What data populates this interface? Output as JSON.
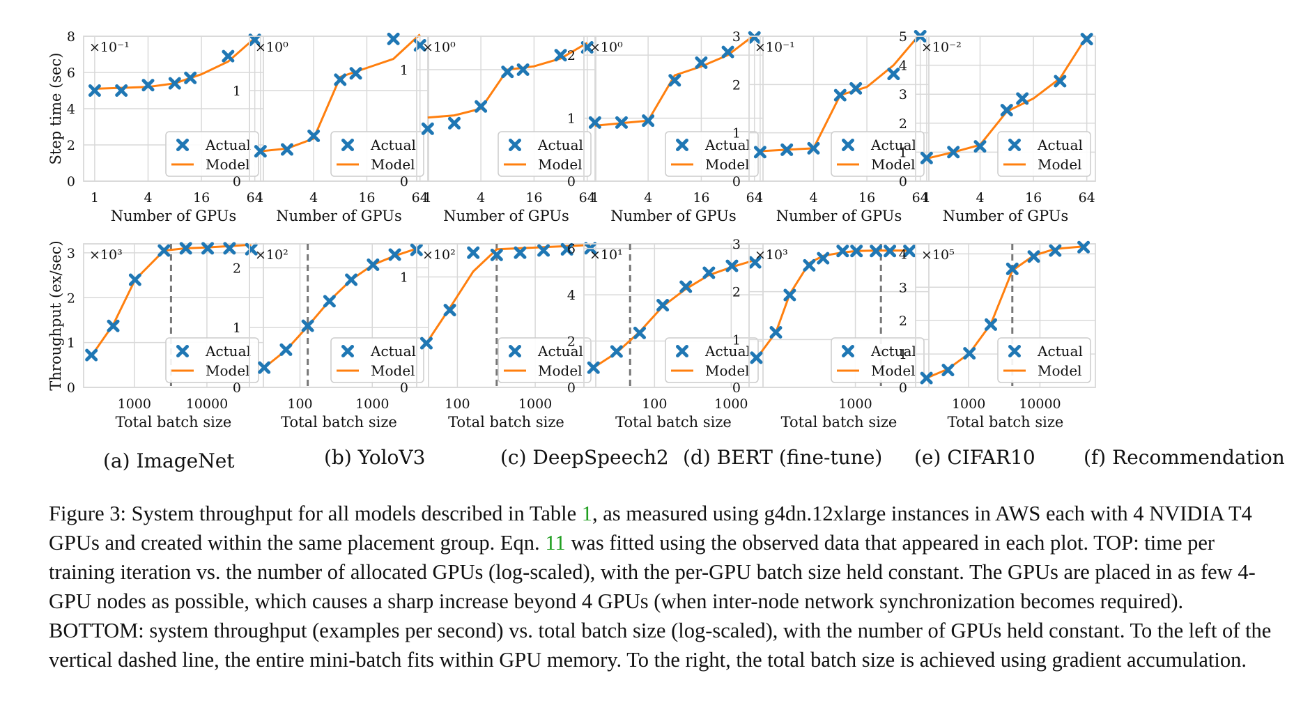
{
  "chart_data": [
    {
      "type": "line",
      "panel": "a-top",
      "ylabel": "Step time (sec)",
      "xlabel": "Number of GPUs",
      "xscale": "log",
      "xticks": [
        1,
        4,
        16,
        64
      ],
      "xlim": [
        0.75,
        80
      ],
      "ylim": [
        0,
        8
      ],
      "yticks": [
        0,
        2,
        4,
        6,
        8
      ],
      "multiplier": "×10⁻¹",
      "legend": "lower-right",
      "grid": true,
      "x_actual": [
        1,
        2,
        4,
        8,
        12,
        32,
        64
      ],
      "y_actual": [
        5.0,
        5.0,
        5.3,
        5.4,
        5.7,
        6.9,
        7.8
      ],
      "x_model": [
        1,
        2,
        4,
        8,
        16,
        32,
        64
      ],
      "y_model": [
        5.1,
        5.15,
        5.2,
        5.4,
        5.9,
        6.6,
        7.9
      ],
      "vline": null
    },
    {
      "type": "line",
      "panel": "b-top",
      "xlabel": "Number of GPUs",
      "xscale": "log",
      "xticks": [
        1,
        4,
        16,
        64
      ],
      "xlim": [
        0.75,
        80
      ],
      "ylim": [
        0,
        1.6
      ],
      "yticks": [
        0,
        1
      ],
      "multiplier": "×10⁰",
      "legend": "lower-right",
      "grid": true,
      "x_actual": [
        1,
        2,
        4,
        8,
        12,
        32,
        64
      ],
      "y_actual": [
        0.33,
        0.35,
        0.5,
        1.12,
        1.19,
        1.57,
        1.5
      ],
      "x_model": [
        1,
        2,
        4,
        8,
        16,
        32,
        64
      ],
      "y_model": [
        0.33,
        0.36,
        0.47,
        1.15,
        1.25,
        1.35,
        1.62
      ],
      "vline": null
    },
    {
      "type": "line",
      "panel": "c-top",
      "xlabel": "Number of GPUs",
      "xscale": "log",
      "xticks": [
        1,
        4,
        16,
        64
      ],
      "xlim": [
        0.75,
        80
      ],
      "ylim": [
        0,
        1.3
      ],
      "yticks": [
        0,
        1
      ],
      "multiplier": "×10⁰",
      "legend": "lower-right",
      "grid": true,
      "x_actual": [
        1,
        2,
        4,
        8,
        12,
        32,
        64
      ],
      "y_actual": [
        0.47,
        0.52,
        0.67,
        0.98,
        1.0,
        1.13,
        1.2
      ],
      "x_model": [
        1,
        2,
        4,
        8,
        16,
        32,
        64
      ],
      "y_model": [
        0.57,
        0.59,
        0.65,
        1.0,
        1.03,
        1.1,
        1.24
      ],
      "vline": null
    },
    {
      "type": "line",
      "panel": "d-top",
      "xlabel": "Number of GPUs",
      "xscale": "log",
      "xticks": [
        1,
        4,
        16,
        64
      ],
      "xlim": [
        0.75,
        80
      ],
      "ylim": [
        0,
        2.3
      ],
      "yticks": [
        0,
        1,
        2
      ],
      "multiplier": "×10⁰",
      "legend": "lower-right",
      "grid": true,
      "x_actual": [
        1,
        2,
        4,
        8,
        16,
        32,
        64
      ],
      "y_actual": [
        0.93,
        0.93,
        0.96,
        1.6,
        1.88,
        2.05,
        2.28
      ],
      "x_model": [
        1,
        2,
        4,
        8,
        16,
        32,
        64
      ],
      "y_model": [
        0.88,
        0.92,
        0.96,
        1.68,
        1.82,
        2.0,
        2.32
      ],
      "vline": null
    },
    {
      "type": "line",
      "panel": "e-top",
      "xlabel": "Number of GPUs",
      "xscale": "log",
      "xticks": [
        1,
        4,
        16,
        64
      ],
      "xlim": [
        0.75,
        80
      ],
      "ylim": [
        0,
        3
      ],
      "yticks": [
        0,
        1,
        2,
        3
      ],
      "multiplier": "×10⁻¹",
      "legend": "lower-right",
      "grid": true,
      "x_actual": [
        1,
        2,
        4,
        8,
        12,
        32,
        64
      ],
      "y_actual": [
        0.6,
        0.65,
        0.68,
        1.78,
        1.92,
        2.22,
        3.0
      ],
      "x_model": [
        1,
        2,
        4,
        8,
        16,
        32,
        64
      ],
      "y_model": [
        0.62,
        0.65,
        0.68,
        1.78,
        1.95,
        2.4,
        3.05
      ],
      "vline": null
    },
    {
      "type": "line",
      "panel": "f-top",
      "xlabel": "Number of GPUs",
      "xscale": "log",
      "xticks": [
        1,
        4,
        16,
        64
      ],
      "xlim": [
        0.75,
        80
      ],
      "ylim": [
        0,
        5
      ],
      "yticks": [
        0,
        1,
        2,
        3,
        4,
        5
      ],
      "multiplier": "×10⁻²",
      "legend": "lower-right",
      "grid": true,
      "x_actual": [
        1,
        2,
        4,
        8,
        12,
        32,
        64
      ],
      "y_actual": [
        0.8,
        1.0,
        1.2,
        2.45,
        2.85,
        3.45,
        4.9
      ],
      "x_model": [
        1,
        2,
        4,
        8,
        16,
        32,
        64
      ],
      "y_model": [
        0.78,
        1.0,
        1.25,
        2.4,
        2.85,
        3.55,
        5.0
      ],
      "vline": null
    },
    {
      "type": "line",
      "panel": "a-bottom",
      "ylabel": "Throughput (ex/sec)",
      "xlabel": "Total batch size",
      "xscale": "log",
      "xticks": [
        1000,
        10000
      ],
      "xlim": [
        200,
        60000
      ],
      "ylim": [
        0,
        3.2
      ],
      "yticks": [
        0,
        1,
        2,
        3
      ],
      "multiplier": "×10³",
      "legend": "lower-right",
      "grid": true,
      "x_actual": [
        256,
        512,
        1024,
        2560,
        5120,
        10240,
        20480,
        40960
      ],
      "y_actual": [
        0.72,
        1.37,
        2.4,
        3.05,
        3.1,
        3.1,
        3.1,
        3.08
      ],
      "x_model": [
        256,
        512,
        1024,
        2560,
        5120,
        10240,
        20480,
        40960
      ],
      "y_model": [
        0.7,
        1.4,
        2.4,
        3.05,
        3.1,
        3.12,
        3.15,
        3.18
      ],
      "vline": 3200
    },
    {
      "type": "line",
      "panel": "b-bottom",
      "xlabel": "Total batch size",
      "xscale": "log",
      "xticks": [
        100,
        1000
      ],
      "xlim": [
        20,
        6000
      ],
      "ylim": [
        0,
        2.4
      ],
      "yticks": [
        0,
        1,
        2
      ],
      "multiplier": "×10²",
      "legend": "lower-right",
      "grid": true,
      "x_actual": [
        32,
        64,
        128,
        256,
        512,
        1024,
        2048,
        4096
      ],
      "y_actual": [
        0.33,
        0.63,
        1.03,
        1.44,
        1.8,
        2.05,
        2.22,
        2.3
      ],
      "x_model": [
        32,
        64,
        128,
        256,
        512,
        1024,
        2048,
        4096
      ],
      "y_model": [
        0.33,
        0.62,
        1.02,
        1.45,
        1.8,
        2.05,
        2.2,
        2.32
      ],
      "vline": 128
    },
    {
      "type": "line",
      "panel": "c-bottom",
      "xlabel": "Total batch size",
      "xscale": "log",
      "xticks": [
        100,
        1000
      ],
      "xlim": [
        30,
        6000
      ],
      "ylim": [
        0,
        1.3
      ],
      "yticks": [
        0,
        1
      ],
      "multiplier": "×10²",
      "legend": "lower-right",
      "grid": true,
      "x_actual": [
        40,
        80,
        160,
        320,
        640,
        1280,
        2560,
        5120
      ],
      "y_actual": [
        0.4,
        0.7,
        1.22,
        1.2,
        1.22,
        1.24,
        1.25,
        1.26
      ],
      "x_model": [
        40,
        80,
        160,
        320,
        640,
        1280,
        2560,
        5120
      ],
      "y_model": [
        0.4,
        0.72,
        1.05,
        1.25,
        1.26,
        1.27,
        1.28,
        1.29
      ],
      "vline": 320
    },
    {
      "type": "line",
      "panel": "d-bottom",
      "xlabel": "Total batch size",
      "xscale": "log",
      "xticks": [
        100,
        1000
      ],
      "xlim": [
        12,
        2600
      ],
      "ylim": [
        0,
        6.2
      ],
      "yticks": [
        0,
        2,
        4,
        6
      ],
      "multiplier": "×10¹",
      "legend": "lower-right",
      "grid": true,
      "x_actual": [
        16,
        32,
        64,
        128,
        256,
        512,
        1024,
        2048
      ],
      "y_actual": [
        0.85,
        1.55,
        2.35,
        3.55,
        4.35,
        4.95,
        5.25,
        5.4
      ],
      "x_model": [
        16,
        32,
        64,
        128,
        256,
        512,
        1024,
        2048
      ],
      "y_model": [
        0.85,
        1.5,
        2.4,
        3.5,
        4.25,
        4.85,
        5.2,
        5.5
      ],
      "vline": 48
    },
    {
      "type": "line",
      "panel": "e-bottom",
      "xlabel": "Total batch size",
      "xscale": "log",
      "xticks": [
        1000
      ],
      "xlim": [
        110,
        4600
      ],
      "ylim": [
        0,
        3
      ],
      "yticks": [
        0,
        1,
        2,
        3
      ],
      "multiplier": "×10³",
      "legend": "lower-right",
      "grid": true,
      "x_actual": [
        128,
        192,
        256,
        384,
        512,
        768,
        1024,
        1536,
        2048,
        3072
      ],
      "y_actual": [
        0.62,
        1.15,
        1.93,
        2.55,
        2.7,
        2.85,
        2.85,
        2.85,
        2.85,
        2.85
      ],
      "x_model": [
        128,
        192,
        256,
        384,
        512,
        768,
        1024,
        1536,
        2048,
        3072
      ],
      "y_model": [
        0.6,
        1.15,
        1.95,
        2.6,
        2.75,
        2.82,
        2.85,
        2.86,
        2.86,
        2.86
      ],
      "vline": 1700
    },
    {
      "type": "line",
      "panel": "f-bottom",
      "xlabel": "Total batch size",
      "xscale": "log",
      "xticks": [
        1000,
        10000
      ],
      "xlim": [
        180,
        60000
      ],
      "ylim": [
        0,
        4.3
      ],
      "yticks": [
        0,
        1,
        2,
        3,
        4
      ],
      "multiplier": "×10⁵",
      "legend": "lower-right",
      "grid": true,
      "x_actual": [
        256,
        512,
        1024,
        2048,
        4096,
        8192,
        16384,
        40960
      ],
      "y_actual": [
        0.28,
        0.52,
        1.02,
        1.88,
        3.55,
        3.92,
        4.1,
        4.2
      ],
      "x_model": [
        256,
        512,
        1024,
        2048,
        4096,
        8192,
        16384,
        40960
      ],
      "y_model": [
        0.28,
        0.55,
        1.02,
        1.9,
        3.5,
        3.95,
        4.15,
        4.22
      ],
      "vline": 4096
    }
  ],
  "legend": {
    "actual": "Actual",
    "model": "Model"
  },
  "subfigures": [
    "(a) ImageNet",
    "(b) YoloV3",
    "(c) DeepSpeech2",
    "(d) BERT (fine-tune)",
    "(e) CIFAR10",
    "(f) Recommendation"
  ],
  "caption": {
    "part1": "Figure 3: System throughput for all models described in Table ",
    "ref1": "1",
    "part2": ", as measured using g4dn.12xlarge instances in AWS each with 4 NVIDIA T4 GPUs and created within the same placement group. Eqn. ",
    "ref2": "11",
    "part3": " was fitted using the observed data that appeared in each plot. TOP: time per training iteration vs. the number of allocated GPUs (log-scaled), with the per-GPU batch size held constant. The GPUs are placed in as few 4-GPU nodes as possible, which causes a sharp increase beyond 4 GPUs (when inter-node network synchronization becomes required). BOTTOM: system throughput (examples per second) vs. total batch size (log-scaled), with the number of GPUs held constant. To the left of the vertical dashed line, the entire mini-batch fits within GPU memory. To the right, the total batch size is achieved using gradient accumulation."
  },
  "colors": {
    "actual": "#1f77b4",
    "model": "#ff7f0e",
    "grid": "#d9d9d9",
    "axis": "#444444",
    "vline": "#777777"
  }
}
